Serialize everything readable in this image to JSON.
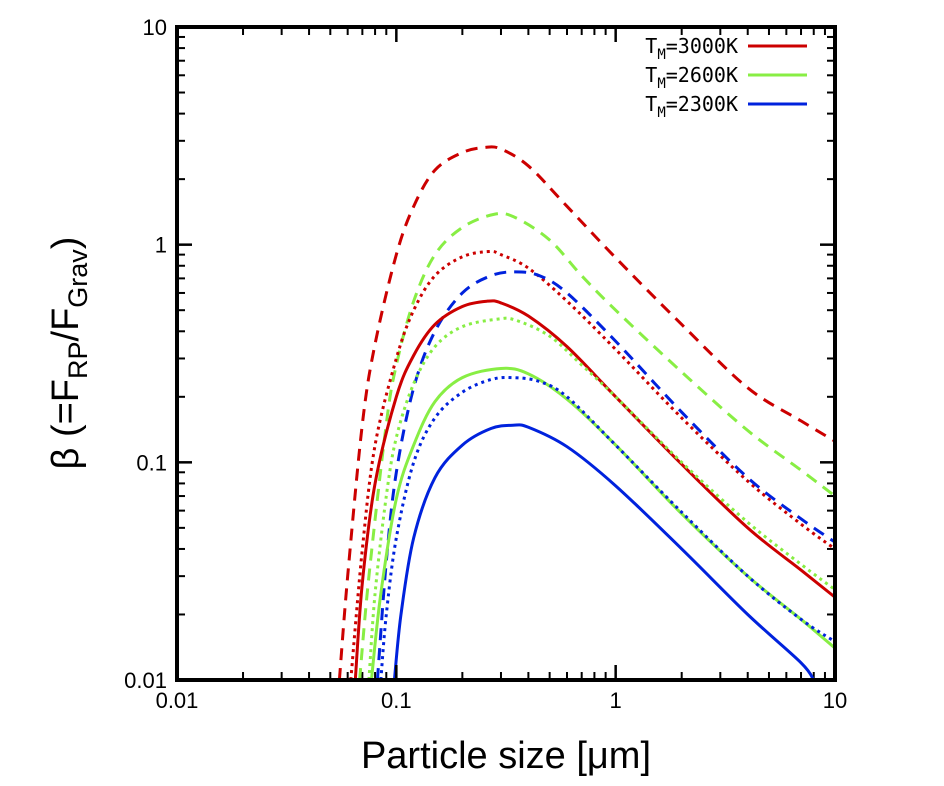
{
  "chart_data": {
    "type": "line",
    "title": "",
    "xlabel": "Particle size [μm]",
    "ylabel": "β (=F_RP/F_Grav)",
    "ylabel_parts": {
      "prefix": "β (=F",
      "sub1": "RP",
      "mid": "/F",
      "sub2": "Grav",
      "suffix": ")"
    },
    "x_scale": "log",
    "y_scale": "log",
    "xlim": [
      0.01,
      10
    ],
    "ylim": [
      0.01,
      10
    ],
    "x_ticks": [
      {
        "value": 0.01,
        "label": "0.01"
      },
      {
        "value": 0.1,
        "label": "0.1"
      },
      {
        "value": 1,
        "label": "1"
      },
      {
        "value": 10,
        "label": "10"
      }
    ],
    "y_ticks": [
      {
        "value": 0.01,
        "label": "0.01"
      },
      {
        "value": 0.1,
        "label": "0.1"
      },
      {
        "value": 1,
        "label": "1"
      },
      {
        "value": 10,
        "label": "10"
      }
    ],
    "legend": {
      "position": "top-right",
      "entries": [
        {
          "prefix": "T",
          "sub": "M",
          "suffix": "=3000K",
          "color": "#cc0000"
        },
        {
          "prefix": "T",
          "sub": "M",
          "suffix": "=2600K",
          "color": "#88ee44"
        },
        {
          "prefix": "T",
          "sub": "M",
          "suffix": "=2300K",
          "color": "#0022dd"
        }
      ]
    },
    "series": [
      {
        "name": "T_M=3000K dashed",
        "color": "#cc0000",
        "style": "dashed",
        "x": [
          0.055,
          0.06,
          0.07,
          0.08,
          0.1,
          0.12,
          0.15,
          0.2,
          0.255,
          0.3,
          0.4,
          0.6,
          1,
          2,
          4,
          7,
          10
        ],
        "y": [
          0.01,
          0.03,
          0.15,
          0.35,
          0.9,
          1.5,
          2.2,
          2.65,
          2.8,
          2.75,
          2.3,
          1.5,
          0.87,
          0.43,
          0.22,
          0.155,
          0.125
        ]
      },
      {
        "name": "T_M=2600K dashed",
        "color": "#88ee44",
        "style": "dashed",
        "x": [
          0.068,
          0.075,
          0.09,
          0.1,
          0.12,
          0.15,
          0.2,
          0.28,
          0.35,
          0.5,
          0.7,
          1,
          2,
          4,
          7,
          10
        ],
        "y": [
          0.01,
          0.03,
          0.15,
          0.28,
          0.55,
          0.9,
          1.2,
          1.38,
          1.33,
          1.05,
          0.72,
          0.5,
          0.26,
          0.14,
          0.092,
          0.07
        ]
      },
      {
        "name": "T_M=3000K dotted",
        "color": "#cc0000",
        "style": "dotted",
        "x": [
          0.062,
          0.07,
          0.08,
          0.1,
          0.12,
          0.15,
          0.2,
          0.265,
          0.3,
          0.4,
          0.6,
          1,
          2,
          4,
          7,
          10
        ],
        "y": [
          0.01,
          0.04,
          0.12,
          0.3,
          0.5,
          0.72,
          0.88,
          0.93,
          0.9,
          0.78,
          0.55,
          0.33,
          0.16,
          0.082,
          0.052,
          0.04
        ]
      },
      {
        "name": "T_M=2300K dashed",
        "color": "#0022dd",
        "style": "dashed",
        "x": [
          0.082,
          0.09,
          0.1,
          0.12,
          0.15,
          0.2,
          0.27,
          0.35,
          0.45,
          0.6,
          1,
          2,
          4,
          7,
          10
        ],
        "y": [
          0.01,
          0.035,
          0.09,
          0.22,
          0.4,
          0.6,
          0.72,
          0.75,
          0.72,
          0.6,
          0.36,
          0.17,
          0.085,
          0.055,
          0.043
        ]
      },
      {
        "name": "T_M=3000K solid",
        "color": "#cc0000",
        "style": "solid",
        "x": [
          0.065,
          0.07,
          0.08,
          0.1,
          0.12,
          0.15,
          0.2,
          0.26,
          0.3,
          0.4,
          0.6,
          1,
          2,
          4,
          7,
          10
        ],
        "y": [
          0.01,
          0.028,
          0.08,
          0.2,
          0.31,
          0.43,
          0.52,
          0.55,
          0.54,
          0.47,
          0.34,
          0.2,
          0.098,
          0.05,
          0.032,
          0.024
        ]
      },
      {
        "name": "T_M=2600K dotted",
        "color": "#88ee44",
        "style": "dotted",
        "x": [
          0.075,
          0.08,
          0.09,
          0.1,
          0.12,
          0.15,
          0.2,
          0.29,
          0.35,
          0.5,
          0.7,
          1,
          2,
          4,
          7,
          10
        ],
        "y": [
          0.01,
          0.025,
          0.07,
          0.13,
          0.23,
          0.34,
          0.42,
          0.455,
          0.45,
          0.38,
          0.28,
          0.2,
          0.1,
          0.053,
          0.034,
          0.026
        ]
      },
      {
        "name": "T_M=2600K solid",
        "color": "#88ee44",
        "style": "solid",
        "x": [
          0.077,
          0.085,
          0.1,
          0.12,
          0.15,
          0.2,
          0.3,
          0.4,
          0.6,
          1,
          2,
          4,
          7,
          10
        ],
        "y": [
          0.01,
          0.025,
          0.068,
          0.12,
          0.19,
          0.245,
          0.27,
          0.255,
          0.195,
          0.12,
          0.058,
          0.03,
          0.019,
          0.014
        ]
      },
      {
        "name": "T_M=2300K dotted",
        "color": "#0022dd",
        "style": "dotted",
        "x": [
          0.085,
          0.09,
          0.1,
          0.12,
          0.15,
          0.2,
          0.27,
          0.34,
          0.45,
          0.6,
          1,
          2,
          4,
          7,
          10
        ],
        "y": [
          0.01,
          0.02,
          0.045,
          0.1,
          0.16,
          0.21,
          0.24,
          0.245,
          0.235,
          0.2,
          0.12,
          0.059,
          0.03,
          0.019,
          0.015
        ]
      },
      {
        "name": "T_M=2300K solid",
        "color": "#0022dd",
        "style": "solid",
        "x": [
          0.098,
          0.105,
          0.12,
          0.15,
          0.2,
          0.27,
          0.34,
          0.4,
          0.6,
          1,
          2,
          4,
          7,
          8
        ],
        "y": [
          0.01,
          0.02,
          0.045,
          0.085,
          0.12,
          0.143,
          0.148,
          0.145,
          0.118,
          0.078,
          0.04,
          0.02,
          0.012,
          0.01
        ]
      }
    ]
  }
}
